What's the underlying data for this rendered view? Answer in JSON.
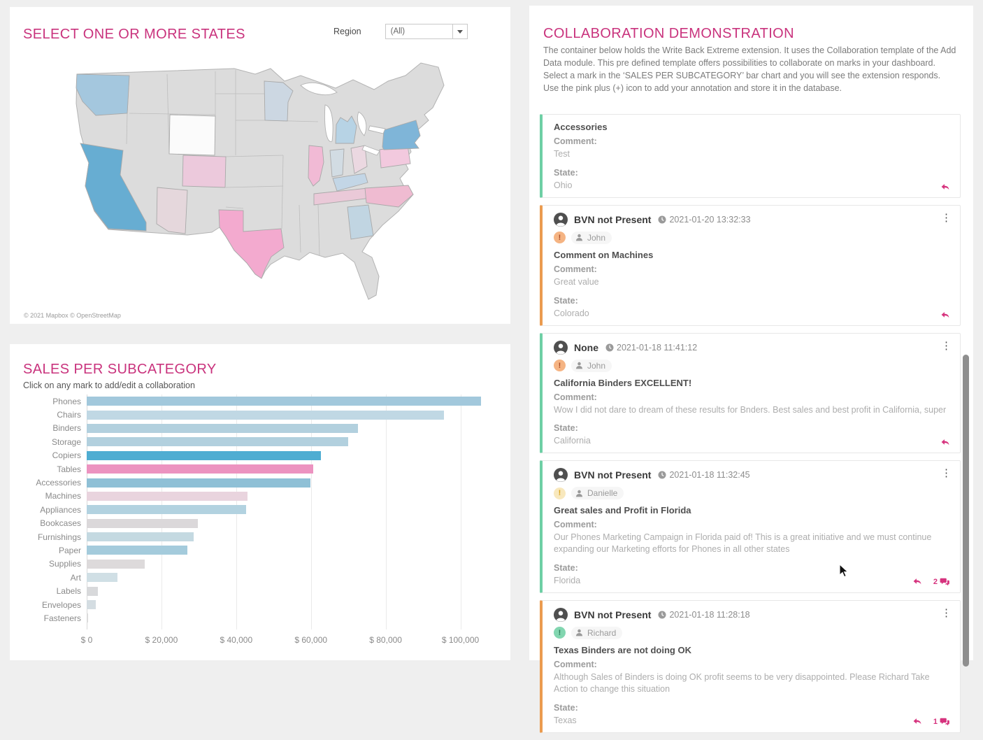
{
  "colors": {
    "title_pink": "#c9337d",
    "accent_green": "#6ecfa5",
    "accent_orange": "#eb9b4f",
    "reply_pink": "#d6337e",
    "map_land": "#dcdcdc",
    "panel_bg": "#ffffff",
    "page_bg": "#efefef"
  },
  "map_panel": {
    "title": "SELECT ONE OR MORE STATES",
    "region_label": "Region",
    "region_value": "(All)",
    "attribution": "© 2021 Mapbox © OpenStreetMap",
    "states": [
      {
        "id": "WA",
        "name": "Washington",
        "color": "#a4c7de"
      },
      {
        "id": "CA",
        "name": "California",
        "color": "#67add2"
      },
      {
        "id": "WY",
        "name": "Wyoming",
        "color": "#fbfbfb"
      },
      {
        "id": "CO",
        "name": "Colorado",
        "color": "#ecc9dc"
      },
      {
        "id": "AZ",
        "name": "Arizona",
        "color": "#e5d7dc"
      },
      {
        "id": "TX",
        "name": "Texas",
        "color": "#f3aacf"
      },
      {
        "id": "MN",
        "name": "Minnesota",
        "color": "#ccd7e2"
      },
      {
        "id": "IL",
        "name": "Illinois",
        "color": "#f1bad5"
      },
      {
        "id": "MI",
        "name": "Michigan",
        "color": "#b7d3e5"
      },
      {
        "id": "IN",
        "name": "Indiana",
        "color": "#d2dce3"
      },
      {
        "id": "OH",
        "name": "Ohio",
        "color": "#ebd8e1"
      },
      {
        "id": "KY",
        "name": "Kentucky",
        "color": "#c3d6e6"
      },
      {
        "id": "TN",
        "name": "Tennessee",
        "color": "#eac9d8"
      },
      {
        "id": "NC",
        "name": "North Carolina",
        "color": "#efbbd1"
      },
      {
        "id": "PA",
        "name": "Pennsylvania",
        "color": "#f2c9de"
      },
      {
        "id": "NY",
        "name": "New York",
        "color": "#7fb5d8"
      },
      {
        "id": "GA",
        "name": "Georgia",
        "color": "#c1d5e2"
      }
    ]
  },
  "chart_panel": {
    "title": "SALES PER SUBCATEGORY",
    "subtitle": "Click on any mark to add/edit a collaboration",
    "chart_data": {
      "type": "bar",
      "orientation": "horizontal",
      "title": "SALES PER SUBCATEGORY",
      "categories": [
        "Phones",
        "Chairs",
        "Binders",
        "Storage",
        "Copiers",
        "Tables",
        "Accessories",
        "Machines",
        "Appliances",
        "Bookcases",
        "Furnishings",
        "Paper",
        "Supplies",
        "Art",
        "Labels",
        "Envelopes",
        "Fasteners"
      ],
      "values": [
        105500,
        95600,
        72600,
        69900,
        62700,
        60700,
        59900,
        43000,
        42600,
        29700,
        28700,
        27000,
        15600,
        8300,
        3000,
        2400,
        400
      ],
      "bar_colors": [
        "#a2c8dc",
        "#c0d8e4",
        "#b2d0de",
        "#b2d0de",
        "#4fadd2",
        "#ec93c0",
        "#8fc0d6",
        "#e9d4de",
        "#b2d2e0",
        "#dbd8da",
        "#c4d9e1",
        "#a4cbdc",
        "#dddadb",
        "#d0dfe5",
        "#d8d9db",
        "#d4dde2",
        "#dcdcdc"
      ],
      "xlabel_ticks": [
        "$ 0",
        "$ 20,000",
        "$ 40,000",
        "$ 60,000",
        "$ 80,000",
        "$ 100,000"
      ],
      "tick_values": [
        0,
        20000,
        40000,
        60000,
        80000,
        100000
      ],
      "xlim": [
        0,
        111500
      ],
      "grid": true,
      "legend": "none"
    }
  },
  "collab_panel": {
    "title": "COLLABORATION DEMONSTRATION",
    "description": "The container below holds the Write Back Extreme extension. It uses the Collaboration template of the Add Data module. This pre defined template offers possibilities to collaborate on marks in your dashboard. Select a mark in the ‘SALES PER SUBCATEGORY’ bar chart and you will see the extension responds. Use the pink plus (+) icon to add your annotation and store it in the database.",
    "comment_label": "Comment:",
    "state_label": "State:",
    "cards": [
      {
        "accent": "green",
        "title": "Accessories",
        "comment": "Test",
        "state": "Ohio"
      },
      {
        "accent": "orange",
        "author": "BVN not Present",
        "timestamp": "2021-01-20 13:32:33",
        "badge": "orange",
        "user": "John",
        "title": "Comment on Machines",
        "comment": "Great value",
        "state": "Colorado"
      },
      {
        "accent": "green",
        "author": "None",
        "timestamp": "2021-01-18 11:41:12",
        "badge": "orange",
        "user": "John",
        "title": "California Binders EXCELLENT!",
        "comment": "Wow I did not dare to dream of these results for Bnders. Best sales and best profit in California, super",
        "state": "California"
      },
      {
        "accent": "green",
        "author": "BVN not Present",
        "timestamp": "2021-01-18 11:32:45",
        "badge": "yellow",
        "user": "Danielle",
        "title": "Great sales and Profit in Florida",
        "comment": "Our Phones Marketing Campaign in Florida paid of! This is a great initiative and we must continue expanding our Marketing efforts for Phones in all other states",
        "state": "Florida",
        "reply_count": "2"
      },
      {
        "accent": "orange",
        "author": "BVN not Present",
        "timestamp": "2021-01-18 11:28:18",
        "badge": "green",
        "user": "Richard",
        "title": "Texas Binders are not doing OK",
        "comment": "Although Sales of Binders is doing OK profit seems to be very disappointed. Please Richard Take Action to change this situation",
        "state": "Texas",
        "reply_count": "1"
      }
    ]
  }
}
